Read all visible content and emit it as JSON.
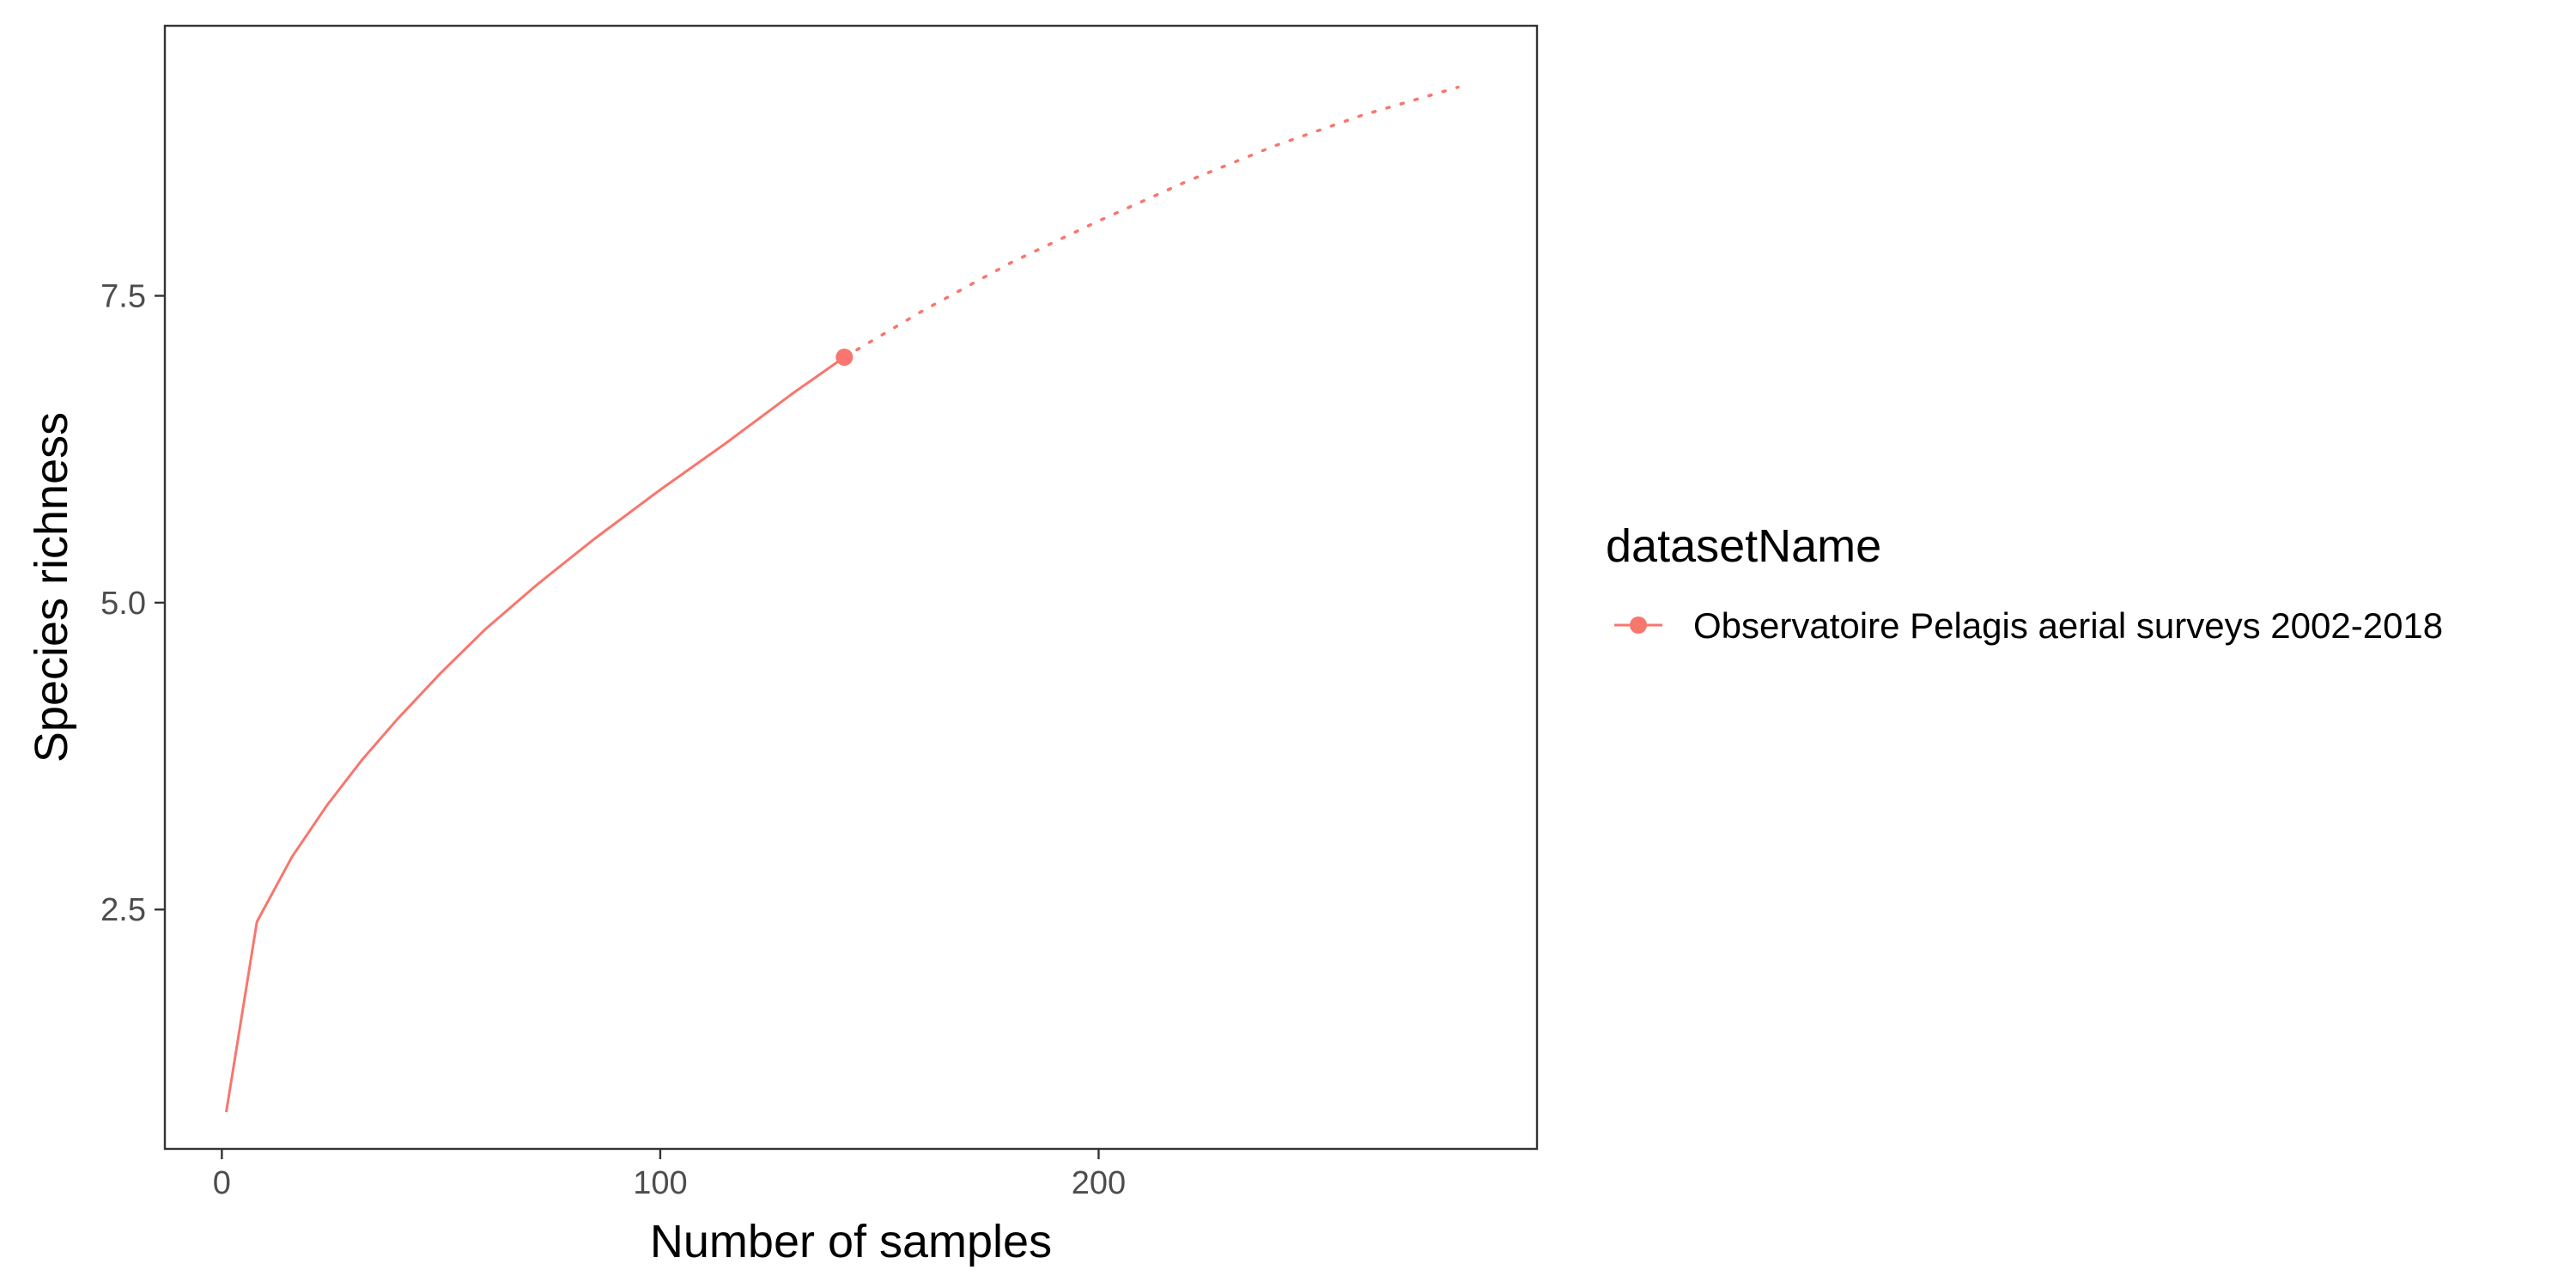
{
  "chart_data": {
    "type": "line",
    "title": "",
    "xlabel": "Number of samples",
    "ylabel": "Species richness",
    "xlim": [
      -13,
      300
    ],
    "ylim": [
      0.55,
      9.7
    ],
    "x_ticks": [
      0,
      100,
      200
    ],
    "x_tick_labels": [
      "0",
      "100",
      "200"
    ],
    "y_ticks": [
      2.5,
      5.0,
      7.5
    ],
    "y_tick_labels": [
      "2.5",
      "5.0",
      "7.5"
    ],
    "grid": false,
    "legend": {
      "title": "datasetName",
      "position": "right"
    },
    "series": [
      {
        "name": "Observatoire Pelagis aerial surveys 2002-2018",
        "color": "#F8766D",
        "rarefaction": {
          "x": [
            1,
            8,
            16,
            24,
            32,
            40,
            50,
            60,
            72,
            85,
            100,
            115,
            130,
            142
          ],
          "y": [
            0.85,
            2.4,
            2.93,
            3.35,
            3.72,
            4.05,
            4.43,
            4.78,
            5.15,
            5.52,
            5.92,
            6.3,
            6.7,
            7.0
          ]
        },
        "observed": {
          "x": 142,
          "y": 7.0
        },
        "extrapolation": {
          "x": [
            142,
            160,
            180,
            200,
            220,
            240,
            260,
            282
          ],
          "y": [
            7.0,
            7.38,
            7.77,
            8.11,
            8.43,
            8.72,
            8.97,
            9.2
          ]
        }
      }
    ]
  }
}
